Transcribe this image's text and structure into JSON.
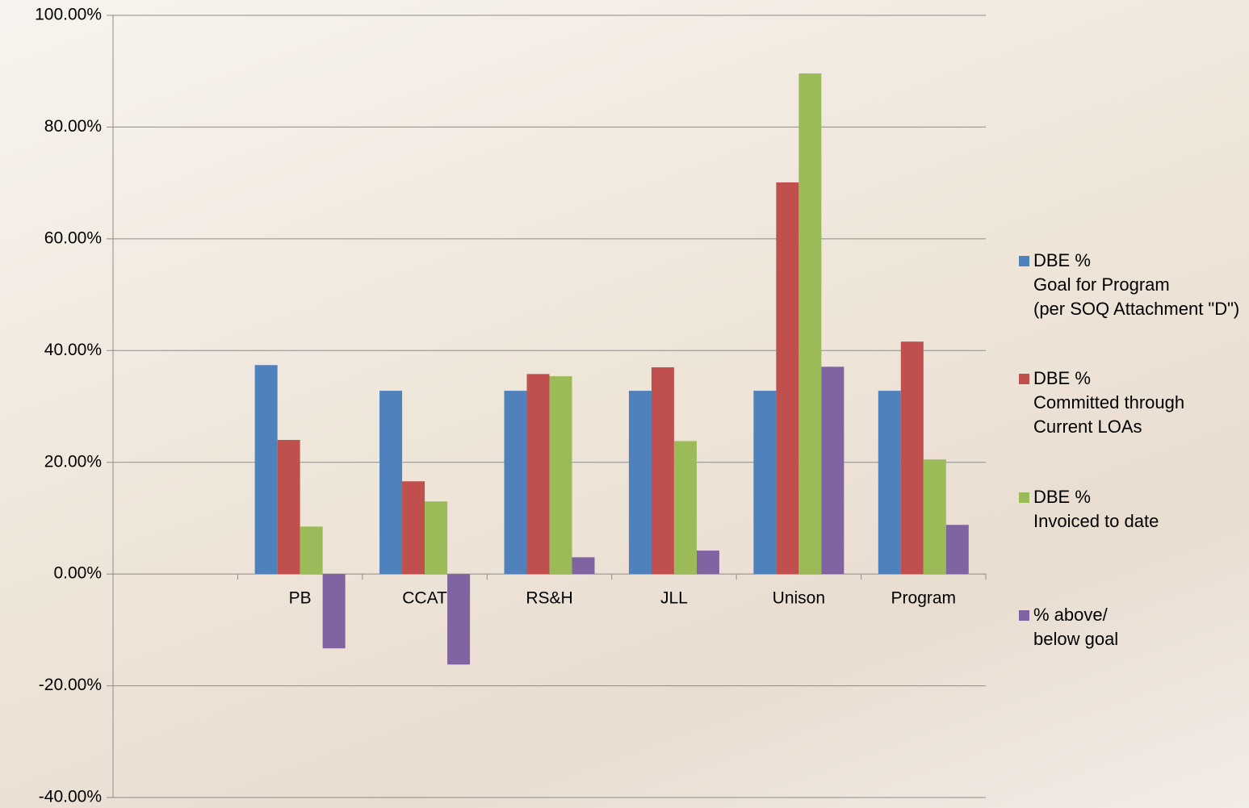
{
  "chart_data": {
    "type": "bar",
    "categories": [
      null,
      "PB",
      "CCAT",
      "RS&H",
      "JLL",
      "Unison",
      "Program"
    ],
    "series": [
      {
        "name": "DBE %\nGoal for Program\n(per SOQ Attachment \"D\")",
        "color": "#4f81bd",
        "values": [
          null,
          37.4,
          32.8,
          32.8,
          32.8,
          32.8,
          32.8
        ]
      },
      {
        "name": "DBE %\nCommitted through\nCurrent LOAs",
        "color": "#c0504d",
        "values": [
          null,
          24.0,
          16.6,
          35.8,
          37.0,
          70.1,
          41.6
        ]
      },
      {
        "name": "DBE %\nInvoiced to date",
        "color": "#9bbb59",
        "values": [
          null,
          8.5,
          13.0,
          35.4,
          23.8,
          89.6,
          20.5
        ]
      },
      {
        "name": "% above/\nbelow goal",
        "color": "#8064a2",
        "values": [
          null,
          -13.3,
          -16.2,
          3.0,
          4.2,
          37.1,
          8.8
        ]
      }
    ],
    "ylim": [
      -40,
      100
    ],
    "yticks": [
      {
        "value": -40,
        "label": "-40.00%"
      },
      {
        "value": -20,
        "label": "-20.00%"
      },
      {
        "value": 0,
        "label": "0.00%"
      },
      {
        "value": 20,
        "label": "20.00%"
      },
      {
        "value": 40,
        "label": "40.00%"
      },
      {
        "value": 60,
        "label": "60.00%"
      },
      {
        "value": 80,
        "label": "80.00%"
      },
      {
        "value": 100,
        "label": "100.00%"
      }
    ],
    "grid": true,
    "legend": "right"
  }
}
